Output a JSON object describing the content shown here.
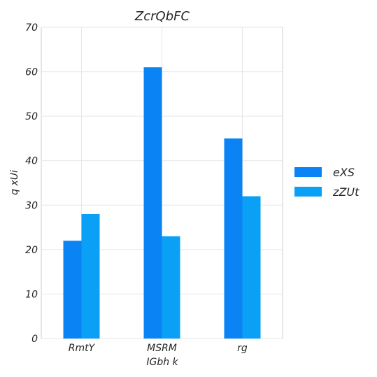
{
  "chart_data": {
    "type": "bar",
    "title": "ZcrQbFC",
    "xlabel": "IGbh k",
    "ylabel": "q xUi",
    "categories": [
      "RmtY",
      "MSRM",
      "rg"
    ],
    "series": [
      {
        "name": "eXS",
        "values": [
          22,
          61,
          45
        ],
        "color": "#0a84f5"
      },
      {
        "name": "zZUt",
        "values": [
          28,
          23,
          32
        ],
        "color": "#0aa0f5"
      }
    ],
    "ylim": [
      0,
      70
    ],
    "yticks": [
      0,
      10,
      20,
      30,
      40,
      50,
      60,
      70
    ],
    "grid": true,
    "legend": "right"
  }
}
